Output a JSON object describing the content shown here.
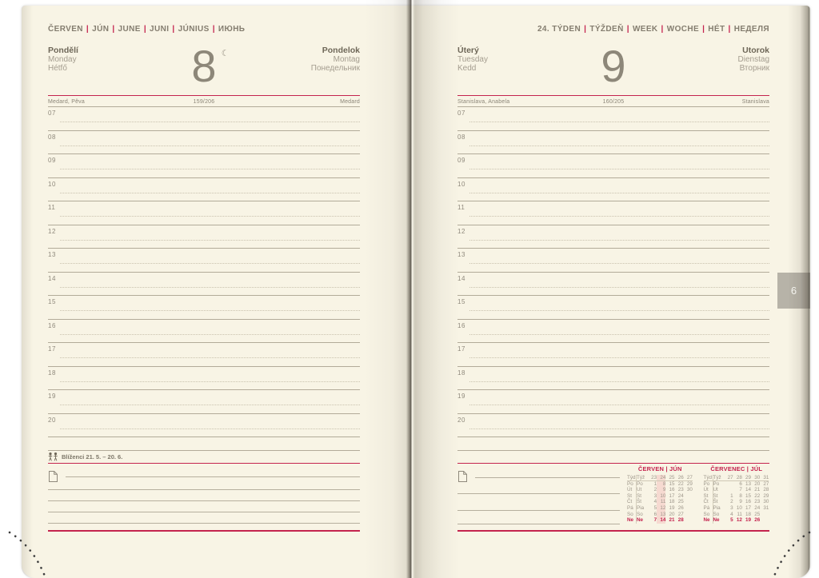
{
  "accent_color": "#c4234e",
  "page_color": "#f8f4e5",
  "hours": [
    "07",
    "08",
    "09",
    "10",
    "11",
    "12",
    "13",
    "14",
    "15",
    "16",
    "17",
    "18",
    "19",
    "20"
  ],
  "left_page": {
    "months": [
      "ČERVEN",
      "JÚN",
      "JUNE",
      "JUNI",
      "JÚNIUS",
      "ИЮНЬ"
    ],
    "day_names_left": [
      "Pondělí",
      "Monday",
      "Hétfő"
    ],
    "day_number": "8",
    "moon_symbol": "☾",
    "day_names_right": [
      "Pondelok",
      "Montag",
      "Понедельник"
    ],
    "nameday_left": "Medard, Pěva",
    "day_of_year": "159/206",
    "nameday_right": "Medard",
    "zodiac_label": "Blíženci 21. 5. – 20. 6.",
    "note_lines": 5
  },
  "right_page": {
    "week_header": [
      "24. TÝDEN",
      "TÝŽDEŇ",
      "WEEK",
      "WOCHE",
      "HÉT",
      "НЕДЕЛЯ"
    ],
    "day_names_left": [
      "Úterý",
      "Tuesday",
      "Kedd"
    ],
    "day_number": "9",
    "day_names_right": [
      "Utorok",
      "Dienstag",
      "Вторник"
    ],
    "nameday_left": "Stanislava, Anabela",
    "day_of_year": "160/205",
    "nameday_right": "Stanislava",
    "note_lines": 4
  },
  "calendars": [
    {
      "title": [
        "ČERVEN",
        "JÚN"
      ],
      "week_label": [
        "Týd",
        "Týž"
      ],
      "week_numbers": [
        "23",
        "24",
        "25",
        "26",
        "27"
      ],
      "day_labels": [
        [
          "Po",
          "Po"
        ],
        [
          "Út",
          "Ut"
        ],
        [
          "St",
          "St"
        ],
        [
          "Čt",
          "Št"
        ],
        [
          "Pá",
          "Pia"
        ],
        [
          "So",
          "So"
        ],
        [
          "Ne",
          "Ne"
        ]
      ],
      "rows": [
        [
          "1",
          "8",
          "15",
          "22",
          "29"
        ],
        [
          "2",
          "9",
          "16",
          "23",
          "30"
        ],
        [
          "3",
          "10",
          "17",
          "24",
          ""
        ],
        [
          "4",
          "11",
          "18",
          "25",
          ""
        ],
        [
          "5",
          "12",
          "19",
          "26",
          ""
        ],
        [
          "6",
          "13",
          "20",
          "27",
          ""
        ],
        [
          "7",
          "14",
          "21",
          "28",
          ""
        ]
      ],
      "highlight_col": 1
    },
    {
      "title": [
        "ČERVENEC",
        "JÚL"
      ],
      "week_label": [
        "Týd",
        "Týž"
      ],
      "week_numbers": [
        "27",
        "28",
        "29",
        "30",
        "31"
      ],
      "day_labels": [
        [
          "Po",
          "Po"
        ],
        [
          "Út",
          "Ut"
        ],
        [
          "St",
          "St"
        ],
        [
          "Čt",
          "Št"
        ],
        [
          "Pá",
          "Pia"
        ],
        [
          "So",
          "So"
        ],
        [
          "Ne",
          "Ne"
        ]
      ],
      "rows": [
        [
          "",
          "6",
          "13",
          "20",
          "27"
        ],
        [
          "",
          "7",
          "14",
          "21",
          "28"
        ],
        [
          "1",
          "8",
          "15",
          "22",
          "29"
        ],
        [
          "2",
          "9",
          "16",
          "23",
          "30"
        ],
        [
          "3",
          "10",
          "17",
          "24",
          "31"
        ],
        [
          "4",
          "11",
          "18",
          "25",
          ""
        ],
        [
          "5",
          "12",
          "19",
          "26",
          ""
        ]
      ],
      "highlight_col": -1
    }
  ],
  "side_tab": {
    "label": "6"
  }
}
